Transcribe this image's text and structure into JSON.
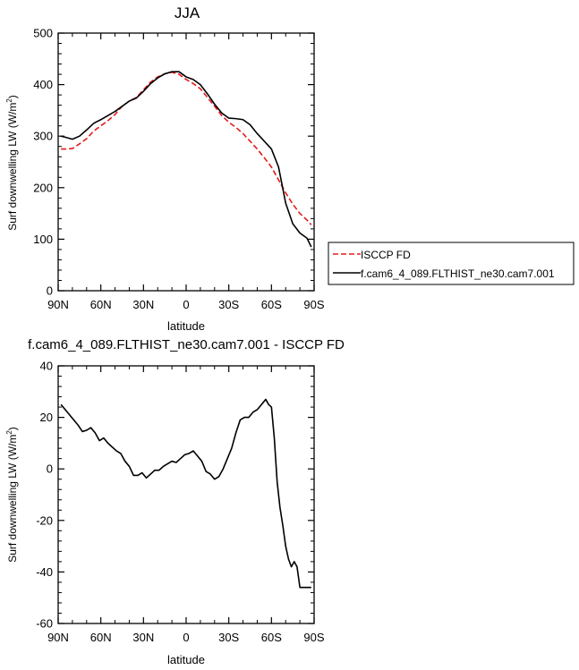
{
  "chart_data": [
    {
      "type": "line",
      "title": "JJA",
      "xlabel": "latitude",
      "ylabel_main": "Surf downwelling LW (W/m",
      "ylabel_sup": "2",
      "ylabel_end": ")",
      "xlim": [
        -90,
        90
      ],
      "ylim": [
        0,
        500
      ],
      "x_ticks": [
        -90,
        -60,
        -30,
        0,
        30,
        60,
        90
      ],
      "x_tick_labels": [
        "90N",
        "60N",
        "30N",
        "0",
        "30S",
        "60S",
        "90S"
      ],
      "y_ticks": [
        0,
        100,
        200,
        300,
        400,
        500
      ],
      "y_tick_labels": [
        "0",
        "100",
        "200",
        "300",
        "400",
        "500"
      ],
      "legend_position": "right-bottom (outside)",
      "series": [
        {
          "name": "ISCCP FD",
          "color": "#e41a1c",
          "style": "dashed",
          "x": [
            -88,
            -85,
            -80,
            -75,
            -70,
            -65,
            -60,
            -55,
            -50,
            -45,
            -40,
            -35,
            -30,
            -25,
            -20,
            -15,
            -10,
            -5,
            0,
            5,
            10,
            15,
            20,
            25,
            30,
            35,
            40,
            45,
            50,
            55,
            60,
            65,
            70,
            75,
            80,
            85,
            88
          ],
          "y": [
            275,
            275,
            276,
            285,
            295,
            310,
            320,
            330,
            342,
            358,
            368,
            375,
            390,
            405,
            415,
            421,
            424,
            420,
            410,
            402,
            392,
            375,
            358,
            340,
            327,
            317,
            305,
            290,
            275,
            258,
            240,
            215,
            190,
            168,
            150,
            137,
            128
          ]
        },
        {
          "name": "f.cam6_4_089.FLTHIST_ne30.cam7.001",
          "color": "#000000",
          "style": "solid",
          "x": [
            -88,
            -85,
            -80,
            -75,
            -70,
            -65,
            -60,
            -55,
            -50,
            -45,
            -40,
            -35,
            -30,
            -25,
            -20,
            -15,
            -10,
            -5,
            0,
            5,
            10,
            15,
            20,
            25,
            30,
            35,
            40,
            45,
            50,
            55,
            60,
            65,
            70,
            75,
            80,
            85,
            88
          ],
          "y": [
            300,
            298,
            294,
            300,
            312,
            325,
            332,
            340,
            348,
            358,
            368,
            374,
            387,
            402,
            413,
            421,
            425,
            425,
            415,
            410,
            400,
            382,
            362,
            345,
            335,
            334,
            332,
            322,
            305,
            290,
            275,
            240,
            170,
            130,
            112,
            102,
            85
          ]
        }
      ]
    },
    {
      "type": "line",
      "title": "f.cam6_4_089.FLTHIST_ne30.cam7.001 - ISCCP FD",
      "xlabel": "latitude",
      "ylabel_main": "Surf downwelling LW (W/m",
      "ylabel_sup": "2",
      "ylabel_end": ")",
      "xlim": [
        -90,
        90
      ],
      "ylim": [
        -60,
        40
      ],
      "x_ticks": [
        -90,
        -60,
        -30,
        0,
        30,
        60,
        90
      ],
      "x_tick_labels": [
        "90N",
        "60N",
        "30N",
        "0",
        "30S",
        "60S",
        "90S"
      ],
      "y_ticks": [
        -60,
        -40,
        -20,
        0,
        20,
        40
      ],
      "y_tick_labels": [
        "-60",
        "-40",
        "-20",
        "0",
        "20",
        "40"
      ],
      "series": [
        {
          "color": "#000000",
          "style": "solid",
          "x": [
            -88,
            -85,
            -82,
            -79,
            -76,
            -73,
            -70,
            -67,
            -64,
            -61,
            -58,
            -55,
            -52,
            -49,
            -46,
            -43,
            -40,
            -37,
            -34,
            -31,
            -28,
            -25,
            -22,
            -19,
            -16,
            -13,
            -10,
            -7,
            -4,
            -1,
            2,
            5,
            8,
            11,
            14,
            17,
            20,
            23,
            26,
            29,
            32,
            35,
            38,
            41,
            44,
            47,
            50,
            53,
            56,
            58,
            60,
            62,
            64,
            66,
            68,
            70,
            72,
            74,
            76,
            78,
            80,
            82,
            84,
            86,
            88
          ],
          "y": [
            25,
            23,
            21,
            19,
            17,
            14.5,
            15,
            16,
            14,
            11,
            12,
            10,
            8.5,
            7,
            6,
            3,
            1,
            -2.5,
            -2.5,
            -1.5,
            -3.5,
            -2,
            -0.5,
            -0.5,
            1,
            2,
            3,
            2.5,
            4,
            5.5,
            6,
            7,
            5,
            3,
            -1,
            -2,
            -4,
            -3,
            0,
            4,
            8,
            14,
            19,
            20,
            20,
            22,
            23,
            25,
            27,
            25,
            24,
            12,
            -5,
            -15,
            -22,
            -30,
            -35,
            -38,
            -36,
            -38,
            -46,
            -46,
            -46,
            -46,
            -46
          ]
        }
      ]
    }
  ]
}
